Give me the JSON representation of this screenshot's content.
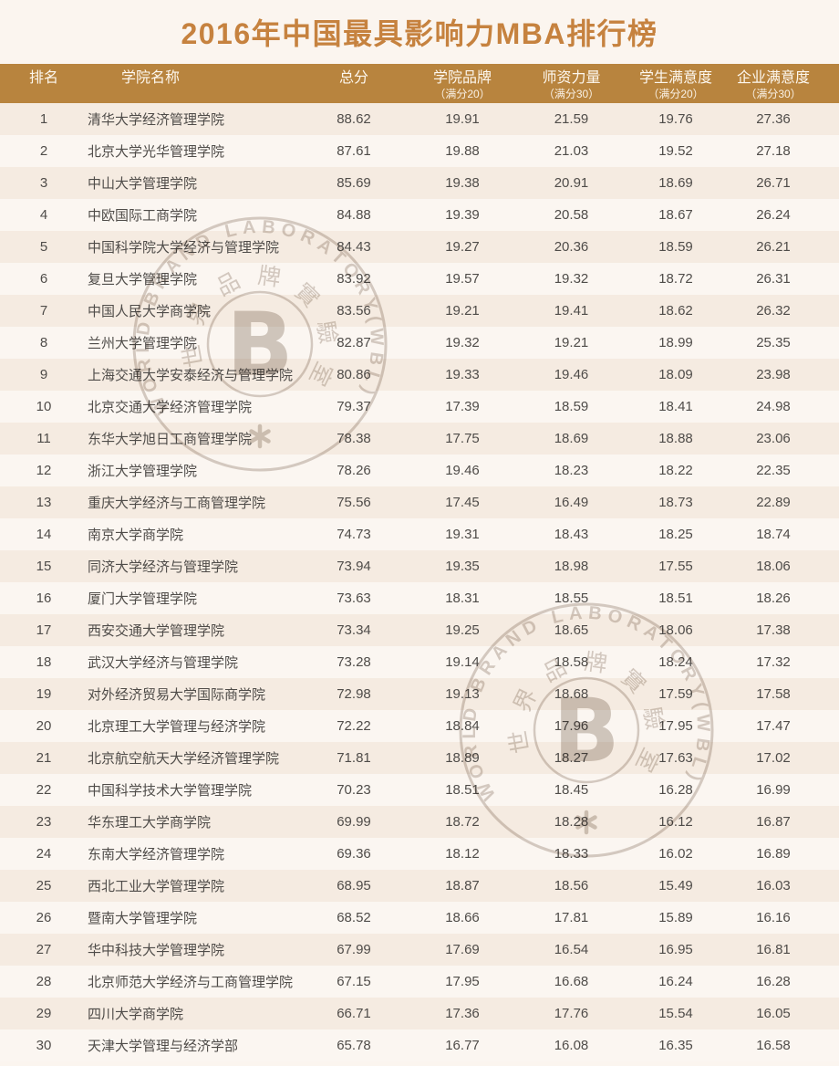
{
  "title": "2016年中国最具影响力MBA排行榜",
  "header": {
    "rank": "排名",
    "name": "学院名称",
    "total": "总分",
    "brand": "学院品牌",
    "brand_sub": "（满分20）",
    "faculty": "师资力量",
    "faculty_sub": "（满分30）",
    "student": "学生满意度",
    "student_sub": "（满分20）",
    "enterprise": "企业满意度",
    "enterprise_sub": "（满分30）"
  },
  "chart_data": {
    "type": "table",
    "title": "2016年中国最具影响力MBA排行榜",
    "columns": [
      "排名",
      "学院名称",
      "总分",
      "学院品牌（满分20）",
      "师资力量（满分30）",
      "学生满意度（满分20）",
      "企业满意度（满分30）"
    ],
    "rows": [
      [
        "1",
        "清华大学经济管理学院",
        "88.62",
        "19.91",
        "21.59",
        "19.76",
        "27.36"
      ],
      [
        "2",
        "北京大学光华管理学院",
        "87.61",
        "19.88",
        "21.03",
        "19.52",
        "27.18"
      ],
      [
        "3",
        "中山大学管理学院",
        "85.69",
        "19.38",
        "20.91",
        "18.69",
        "26.71"
      ],
      [
        "4",
        "中欧国际工商学院",
        "84.88",
        "19.39",
        "20.58",
        "18.67",
        "26.24"
      ],
      [
        "5",
        "中国科学院大学经济与管理学院",
        "84.43",
        "19.27",
        "20.36",
        "18.59",
        "26.21"
      ],
      [
        "6",
        "复旦大学管理学院",
        "83.92",
        "19.57",
        "19.32",
        "18.72",
        "26.31"
      ],
      [
        "7",
        "中国人民大学商学院",
        "83.56",
        "19.21",
        "19.41",
        "18.62",
        "26.32"
      ],
      [
        "8",
        "兰州大学管理学院",
        "82.87",
        "19.32",
        "19.21",
        "18.99",
        "25.35"
      ],
      [
        "9",
        "上海交通大学安泰经济与管理学院",
        "80.86",
        "19.33",
        "19.46",
        "18.09",
        "23.98"
      ],
      [
        "10",
        "北京交通大学经济管理学院",
        "79.37",
        "17.39",
        "18.59",
        "18.41",
        "24.98"
      ],
      [
        "11",
        "东华大学旭日工商管理学院",
        "78.38",
        "17.75",
        "18.69",
        "18.88",
        "23.06"
      ],
      [
        "12",
        "浙江大学管理学院",
        "78.26",
        "19.46",
        "18.23",
        "18.22",
        "22.35"
      ],
      [
        "13",
        "重庆大学经济与工商管理学院",
        "75.56",
        "17.45",
        "16.49",
        "18.73",
        "22.89"
      ],
      [
        "14",
        "南京大学商学院",
        "74.73",
        "19.31",
        "18.43",
        "18.25",
        "18.74"
      ],
      [
        "15",
        "同济大学经济与管理学院",
        "73.94",
        "19.35",
        "18.98",
        "17.55",
        "18.06"
      ],
      [
        "16",
        "厦门大学管理学院",
        "73.63",
        "18.31",
        "18.55",
        "18.51",
        "18.26"
      ],
      [
        "17",
        "西安交通大学管理学院",
        "73.34",
        "19.25",
        "18.65",
        "18.06",
        "17.38"
      ],
      [
        "18",
        "武汉大学经济与管理学院",
        "73.28",
        "19.14",
        "18.58",
        "18.24",
        "17.32"
      ],
      [
        "19",
        "对外经济贸易大学国际商学院",
        "72.98",
        "19.13",
        "18.68",
        "17.59",
        "17.58"
      ],
      [
        "20",
        "北京理工大学管理与经济学院",
        "72.22",
        "18.84",
        "17.96",
        "17.95",
        "17.47"
      ],
      [
        "21",
        "北京航空航天大学经济管理学院",
        "71.81",
        "18.89",
        "18.27",
        "17.63",
        "17.02"
      ],
      [
        "22",
        "中国科学技术大学管理学院",
        "70.23",
        "18.51",
        "18.45",
        "16.28",
        "16.99"
      ],
      [
        "23",
        "华东理工大学商学院",
        "69.99",
        "18.72",
        "18.28",
        "16.12",
        "16.87"
      ],
      [
        "24",
        "东南大学经济管理学院",
        "69.36",
        "18.12",
        "18.33",
        "16.02",
        "16.89"
      ],
      [
        "25",
        "西北工业大学管理学院",
        "68.95",
        "18.87",
        "18.56",
        "15.49",
        "16.03"
      ],
      [
        "26",
        "暨南大学管理学院",
        "68.52",
        "18.66",
        "17.81",
        "15.89",
        "16.16"
      ],
      [
        "27",
        "华中科技大学管理学院",
        "67.99",
        "17.69",
        "16.54",
        "16.95",
        "16.81"
      ],
      [
        "28",
        "北京师范大学经济与工商管理学院",
        "67.15",
        "17.95",
        "16.68",
        "16.24",
        "16.28"
      ],
      [
        "29",
        "四川大学商学院",
        "66.71",
        "17.36",
        "17.76",
        "15.54",
        "16.05"
      ],
      [
        "30",
        "天津大学管理与经济学部",
        "65.78",
        "16.77",
        "16.08",
        "16.35",
        "16.58"
      ]
    ]
  },
  "watermark": {
    "ring_text": "WORLD BRAND LABORATORY(WBL)",
    "inner_letter": "B",
    "chinese_chars": [
      "世",
      "界",
      "品",
      "牌",
      "實",
      "驗",
      "室"
    ]
  },
  "colors": {
    "header_band": "#b8843e",
    "title_text": "#c6823f",
    "row_dark": "#f5ebe1",
    "row_light": "#fbf6f1",
    "page_bg": "#fbf5ef",
    "header_text": "#fdf7ee",
    "body_text": "#4f4c49"
  }
}
